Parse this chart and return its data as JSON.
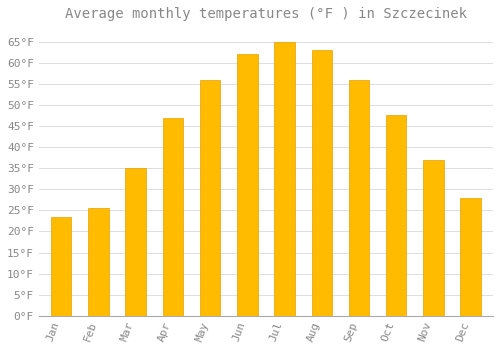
{
  "title": "Average monthly temperatures (°F ) in Szczecinek",
  "months": [
    "Jan",
    "Feb",
    "Mar",
    "Apr",
    "May",
    "Jun",
    "Jul",
    "Aug",
    "Sep",
    "Oct",
    "Nov",
    "Dec"
  ],
  "values": [
    23.5,
    25.5,
    35.0,
    47.0,
    56.0,
    62.0,
    65.0,
    63.0,
    56.0,
    47.5,
    37.0,
    28.0
  ],
  "bar_color": "#FFBB00",
  "bar_edge_color": "#E8A000",
  "background_color": "#FFFFFF",
  "grid_color": "#DDDDDD",
  "text_color": "#888888",
  "ylim": [
    0,
    68
  ],
  "yticks": [
    0,
    5,
    10,
    15,
    20,
    25,
    30,
    35,
    40,
    45,
    50,
    55,
    60,
    65
  ],
  "title_fontsize": 10,
  "tick_fontsize": 8,
  "bar_width": 0.55
}
